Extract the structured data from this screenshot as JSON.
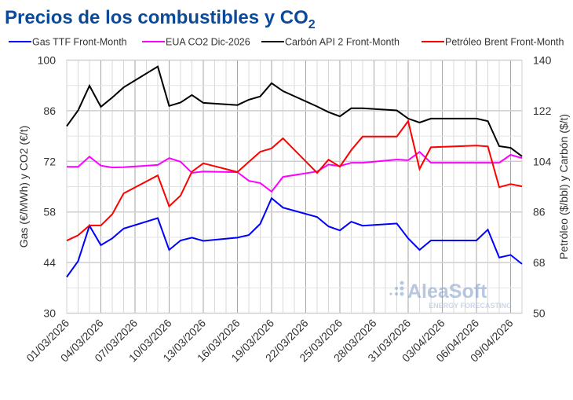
{
  "chart_data": {
    "type": "line",
    "title": "Precios de los combustibles y CO",
    "title_subscript": "2",
    "ylabel_left": "Gas (€/MWh) y CO2 (€/t)",
    "ylabel_right": "Petróleo ($/bbl) y Carbón ($/t)",
    "ylim_left": [
      30,
      100
    ],
    "yticks_left": [
      30,
      44,
      58,
      72,
      86,
      100
    ],
    "ylim_right": [
      50,
      140
    ],
    "yticks_right": [
      50,
      68,
      86,
      104,
      122,
      140
    ],
    "xlim": [
      "01/03/2026",
      "10/04/2026"
    ],
    "xtick_labels": [
      "01/03/2026",
      "04/03/2026",
      "07/03/2026",
      "10/03/2026",
      "13/03/2026",
      "16/03/2026",
      "19/03/2026",
      "22/03/2026",
      "25/03/2026",
      "28/03/2026",
      "31/03/2026",
      "03/04/2026",
      "06/04/2026",
      "09/04/2026"
    ],
    "grid": true,
    "legend_position": "top",
    "x": [
      "01/03/2026",
      "02/03/2026",
      "03/03/2026",
      "04/03/2026",
      "05/03/2026",
      "06/03/2026",
      "09/03/2026",
      "10/03/2026",
      "11/03/2026",
      "12/03/2026",
      "13/03/2026",
      "16/03/2026",
      "17/03/2026",
      "18/03/2026",
      "19/03/2026",
      "20/03/2026",
      "23/03/2026",
      "24/03/2026",
      "25/03/2026",
      "26/03/2026",
      "27/03/2026",
      "30/03/2026",
      "31/03/2026",
      "01/04/2026",
      "02/04/2026",
      "06/04/2026",
      "07/04/2026",
      "08/04/2026",
      "09/04/2026",
      "10/04/2026"
    ],
    "series": [
      {
        "name": "Gas TTF Front-Month",
        "axis": "left",
        "color": "#0000ff",
        "values": [
          40.0,
          44.4,
          54.2,
          48.8,
          50.7,
          53.4,
          56.3,
          47.5,
          50.1,
          50.9,
          50.0,
          50.9,
          51.6,
          54.7,
          61.8,
          59.2,
          56.6,
          54.0,
          52.9,
          55.3,
          54.2,
          54.8,
          50.7,
          47.5,
          50.1,
          50.1,
          53.1,
          45.4,
          46.1,
          43.6
        ]
      },
      {
        "name": "EUA CO2 Dic-2026",
        "axis": "left",
        "color": "#ff00ff",
        "values": [
          70.5,
          70.5,
          73.3,
          70.8,
          70.3,
          70.4,
          71.0,
          72.9,
          71.9,
          68.8,
          69.2,
          69.0,
          66.6,
          66.0,
          63.6,
          67.7,
          69.2,
          71.1,
          70.7,
          71.6,
          71.6,
          72.5,
          72.3,
          74.6,
          71.6,
          71.6,
          71.6,
          71.6,
          73.8,
          72.9
        ]
      },
      {
        "name": "Carbón API 2 Front-Month",
        "axis": "right",
        "color": "#000000",
        "values": [
          116.5,
          122.1,
          130.9,
          123.4,
          126.7,
          130.3,
          137.7,
          123.7,
          124.9,
          127.6,
          124.8,
          124.0,
          125.9,
          127.1,
          131.8,
          129.0,
          123.5,
          121.5,
          120.0,
          122.9,
          122.9,
          122.1,
          119.2,
          117.8,
          119.2,
          119.2,
          118.3,
          109.4,
          108.8,
          105.8
        ]
      },
      {
        "name": "Petróleo Brent Front-Month",
        "axis": "right",
        "color": "#ff0000",
        "values": [
          75.8,
          77.7,
          81.2,
          81.2,
          85.2,
          92.6,
          99.0,
          88.0,
          91.8,
          100.3,
          103.3,
          100.2,
          103.8,
          107.4,
          108.6,
          112.2,
          99.9,
          104.6,
          102.1,
          108.0,
          112.8,
          112.8,
          118.3,
          101.3,
          109.0,
          109.6,
          109.3,
          94.8,
          95.9,
          95.1
        ]
      }
    ]
  },
  "watermark": {
    "brand": "AleaSoft",
    "tagline": "ENERGY FORECASTING"
  }
}
